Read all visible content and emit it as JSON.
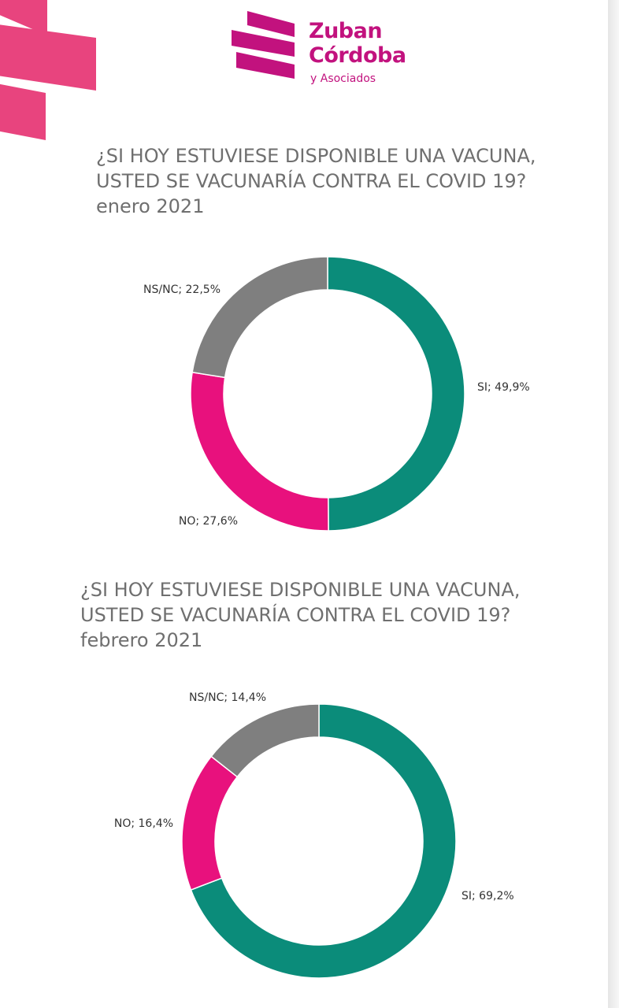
{
  "brand": {
    "name_line1": "Zuban",
    "name_line2": "Córdoba",
    "name_line3": "y Asociados",
    "color": "#c2127e",
    "deco_color": "#e8447e"
  },
  "chart_data": [
    {
      "type": "pie",
      "title": "¿SI HOY ESTUVIESE DISPONIBLE UNA VACUNA, USTED SE VACUNARÍA CONTRA EL COVID 19? enero 2021",
      "categories": [
        "SI",
        "NO",
        "NS/NC"
      ],
      "values": [
        49.9,
        27.6,
        22.5
      ],
      "labels": [
        "SI; 49,9%",
        "NO; 27,6%",
        "NS/NC; 22,5%"
      ],
      "colors": [
        "#0b8c7a",
        "#e8117d",
        "#7f7f7f"
      ],
      "donut": true,
      "legend": "none"
    },
    {
      "type": "pie",
      "title": "¿SI HOY ESTUVIESE DISPONIBLE UNA VACUNA, USTED SE VACUNARÍA CONTRA EL COVID 19? febrero 2021",
      "categories": [
        "SI",
        "NO",
        "NS/NC"
      ],
      "values": [
        69.2,
        16.4,
        14.4
      ],
      "labels": [
        "SI; 69,2%",
        "NO; 16,4%",
        "NS/NC; 14,4%"
      ],
      "colors": [
        "#0b8c7a",
        "#e8117d",
        "#7f7f7f"
      ],
      "donut": true,
      "legend": "none"
    }
  ]
}
